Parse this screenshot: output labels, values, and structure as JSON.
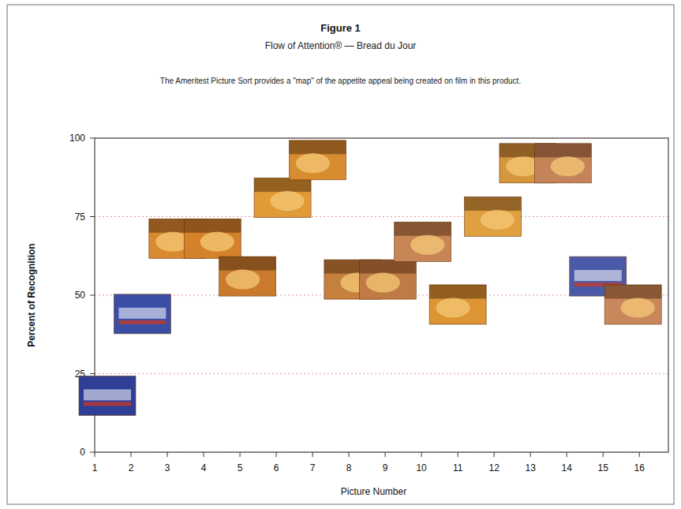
{
  "chart_data": {
    "type": "scatter",
    "title": "Figure 1",
    "subtitle": "Flow of Attention® — Bread du Jour",
    "annotation": "The Ameritest Picture Sort provides a \"map\" of the appetite appeal being created on film in this product.",
    "x_label": "Picture Number",
    "y_label": "Percent of Recognition",
    "x": [
      1,
      2,
      3,
      4,
      5,
      6,
      7,
      8,
      9,
      10,
      11,
      12,
      13,
      14,
      15,
      16
    ],
    "values": [
      18,
      44,
      68,
      68,
      56,
      81,
      93,
      55,
      55,
      67,
      47,
      75,
      92,
      92,
      56,
      47
    ],
    "colors": [
      "#2f3f96",
      "#3b4ea6",
      "#d98a2e",
      "#d4822a",
      "#c97a2c",
      "#e09a36",
      "#d88c30",
      "#c5803e",
      "#c07a44",
      "#c88656",
      "#dd9432",
      "#e0a040",
      "#d6963c",
      "#c4845a",
      "#4a5aa8",
      "#c8885c"
    ],
    "marker": "picture",
    "xlim": [
      1,
      16.8
    ],
    "ylim": [
      0,
      100
    ],
    "xticks": [
      1,
      2,
      3,
      4,
      5,
      6,
      7,
      8,
      9,
      10,
      11,
      12,
      13,
      14,
      15,
      16
    ],
    "yticks": [
      0,
      25,
      50,
      75,
      100
    ],
    "grid": true
  }
}
